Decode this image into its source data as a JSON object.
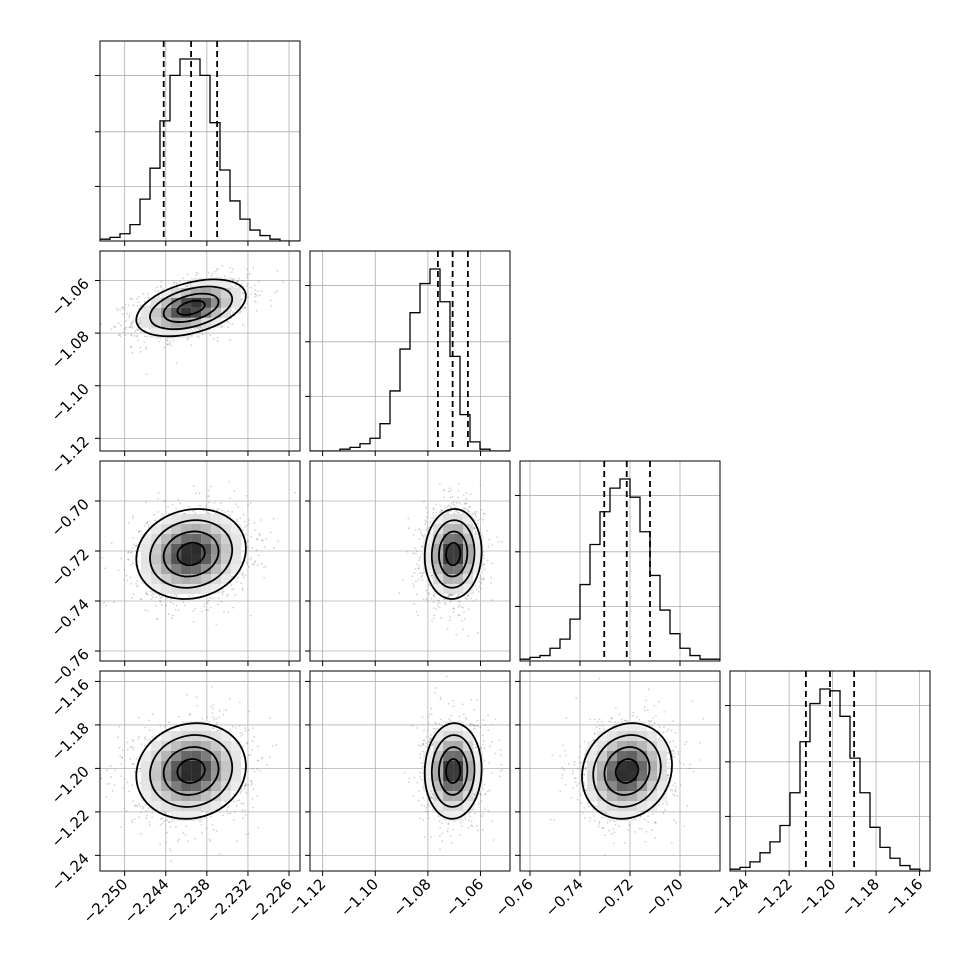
{
  "chart_data": {
    "type": "corner",
    "colors": {
      "lines": "#000000",
      "grid": "#b0b0b0",
      "points": "#7f7f7f"
    },
    "grid": true,
    "parameters": [
      {
        "ticks": [
          -2.25,
          -2.244,
          -2.238,
          -2.232,
          -2.226
        ],
        "tick_labels": [
          "−2.250",
          "−2.244",
          "−2.238",
          "−2.232",
          "−2.226"
        ],
        "range": [
          -2.2536,
          -2.2244
        ],
        "quantiles": [
          -2.2443,
          -2.2403,
          -2.2365
        ],
        "hist": {
          "edges_start": -2.2536,
          "bin_width": 0.00146,
          "counts": [
            1,
            2,
            4,
            9,
            23,
            40,
            66,
            91,
            100,
            100,
            91,
            65,
            39,
            22,
            12,
            6,
            3,
            1,
            0,
            0
          ]
        },
        "center": -2.2403,
        "sigma": 0.004
      },
      {
        "ticks": [
          -1.12,
          -1.1,
          -1.08,
          -1.06
        ],
        "tick_labels": [
          "−1.12",
          "−1.10",
          "−1.08",
          "−1.06"
        ],
        "range": [
          -1.1248,
          -1.0488
        ],
        "quantiles": [
          -1.0762,
          -1.0706,
          -1.0648
        ],
        "hist": {
          "edges_start": -1.1248,
          "bin_width": 0.0038,
          "counts": [
            0,
            0,
            0,
            1,
            2,
            4,
            7,
            15,
            33,
            56,
            76,
            92,
            100,
            82,
            52,
            20,
            5,
            1,
            0,
            0
          ]
        },
        "center": -1.0704,
        "sigma": 0.0054
      },
      {
        "ticks": [
          -0.76,
          -0.74,
          -0.72,
          -0.7
        ],
        "tick_labels": [
          "−0.76",
          "−0.74",
          "−0.72",
          "−0.70"
        ],
        "range": [
          -0.764,
          -0.684
        ],
        "quantiles": [
          -0.7303,
          -0.7213,
          -0.712
        ],
        "hist": {
          "edges_start": -0.764,
          "bin_width": 0.004,
          "counts": [
            1,
            2,
            3,
            7,
            12,
            23,
            42,
            64,
            82,
            95,
            100,
            90,
            71,
            47,
            28,
            15,
            7,
            3,
            1,
            1
          ]
        },
        "center": -0.7212,
        "sigma": 0.009
      },
      {
        "ticks": [
          -1.24,
          -1.22,
          -1.2,
          -1.18,
          -1.16
        ],
        "tick_labels": [
          "−1.24",
          "−1.22",
          "−1.20",
          "−1.18",
          "−1.16"
        ],
        "range": [
          -1.2472,
          -1.1552
        ],
        "quantiles": [
          -1.2123,
          -1.2012,
          -1.1901
        ],
        "hist": {
          "edges_start": -1.2472,
          "bin_width": 0.0046,
          "counts": [
            1,
            2,
            5,
            10,
            16,
            25,
            43,
            71,
            92,
            100,
            99,
            85,
            62,
            43,
            24,
            13,
            7,
            3,
            1,
            0
          ]
        },
        "center": -1.2012,
        "sigma": 0.011
      }
    ],
    "correlations": [
      [
        1,
        2,
        0.42
      ],
      [
        1,
        3,
        0.12
      ],
      [
        2,
        3,
        0.05
      ],
      [
        1,
        4,
        0.1
      ],
      [
        2,
        4,
        0.04
      ],
      [
        3,
        4,
        0.12
      ]
    ],
    "contour_levels_sigma": [
      0.5,
      1.0,
      1.5,
      2.0
    ]
  }
}
